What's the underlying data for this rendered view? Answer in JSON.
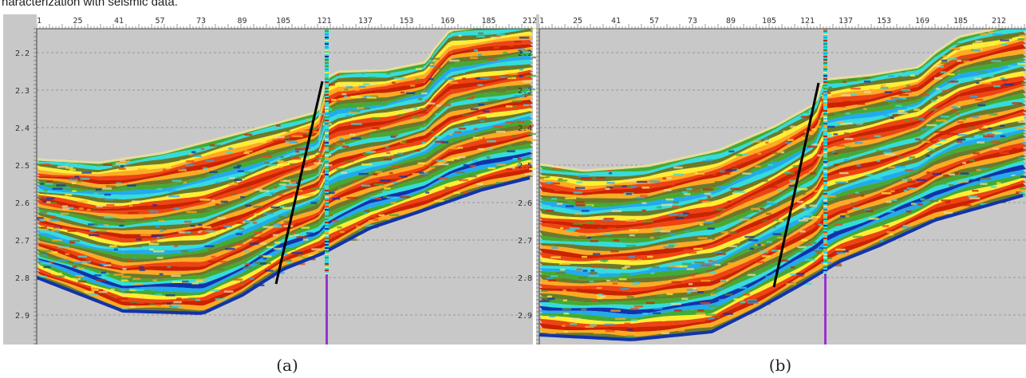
{
  "caption": "haracterization with seismic data.",
  "panels": [
    {
      "id": "a",
      "label": "(a)",
      "trace_ticks": [
        "1",
        "25",
        "41",
        "57",
        "73",
        "89",
        "105",
        "121",
        "137",
        "153",
        "169",
        "185",
        "212"
      ],
      "time_ticks": [
        "2.2",
        "2.3",
        "2.4",
        "2.5",
        "2.6",
        "2.7",
        "2.8",
        "2.9"
      ]
    },
    {
      "id": "b",
      "label": "(b)",
      "trace_ticks": [
        "1",
        "25",
        "41",
        "57",
        "73",
        "89",
        "105",
        "121",
        "137",
        "153",
        "169",
        "185",
        "212"
      ],
      "time_ticks": [
        "2.2",
        "2.3",
        "2.4",
        "2.5",
        "2.6",
        "2.7",
        "2.8",
        "2.9"
      ]
    }
  ],
  "colors": {
    "background": "#c8c8c8",
    "fault_line": "#000000",
    "well_top": "#22dddd",
    "well_bottom": "#9933cc",
    "palette": [
      "#1133aa",
      "#22aaee",
      "#33dddd",
      "#44aa33",
      "#6b7a2a",
      "#ffee33",
      "#ffaa22",
      "#ee4411",
      "#cc2200",
      "#e8dca0"
    ]
  }
}
